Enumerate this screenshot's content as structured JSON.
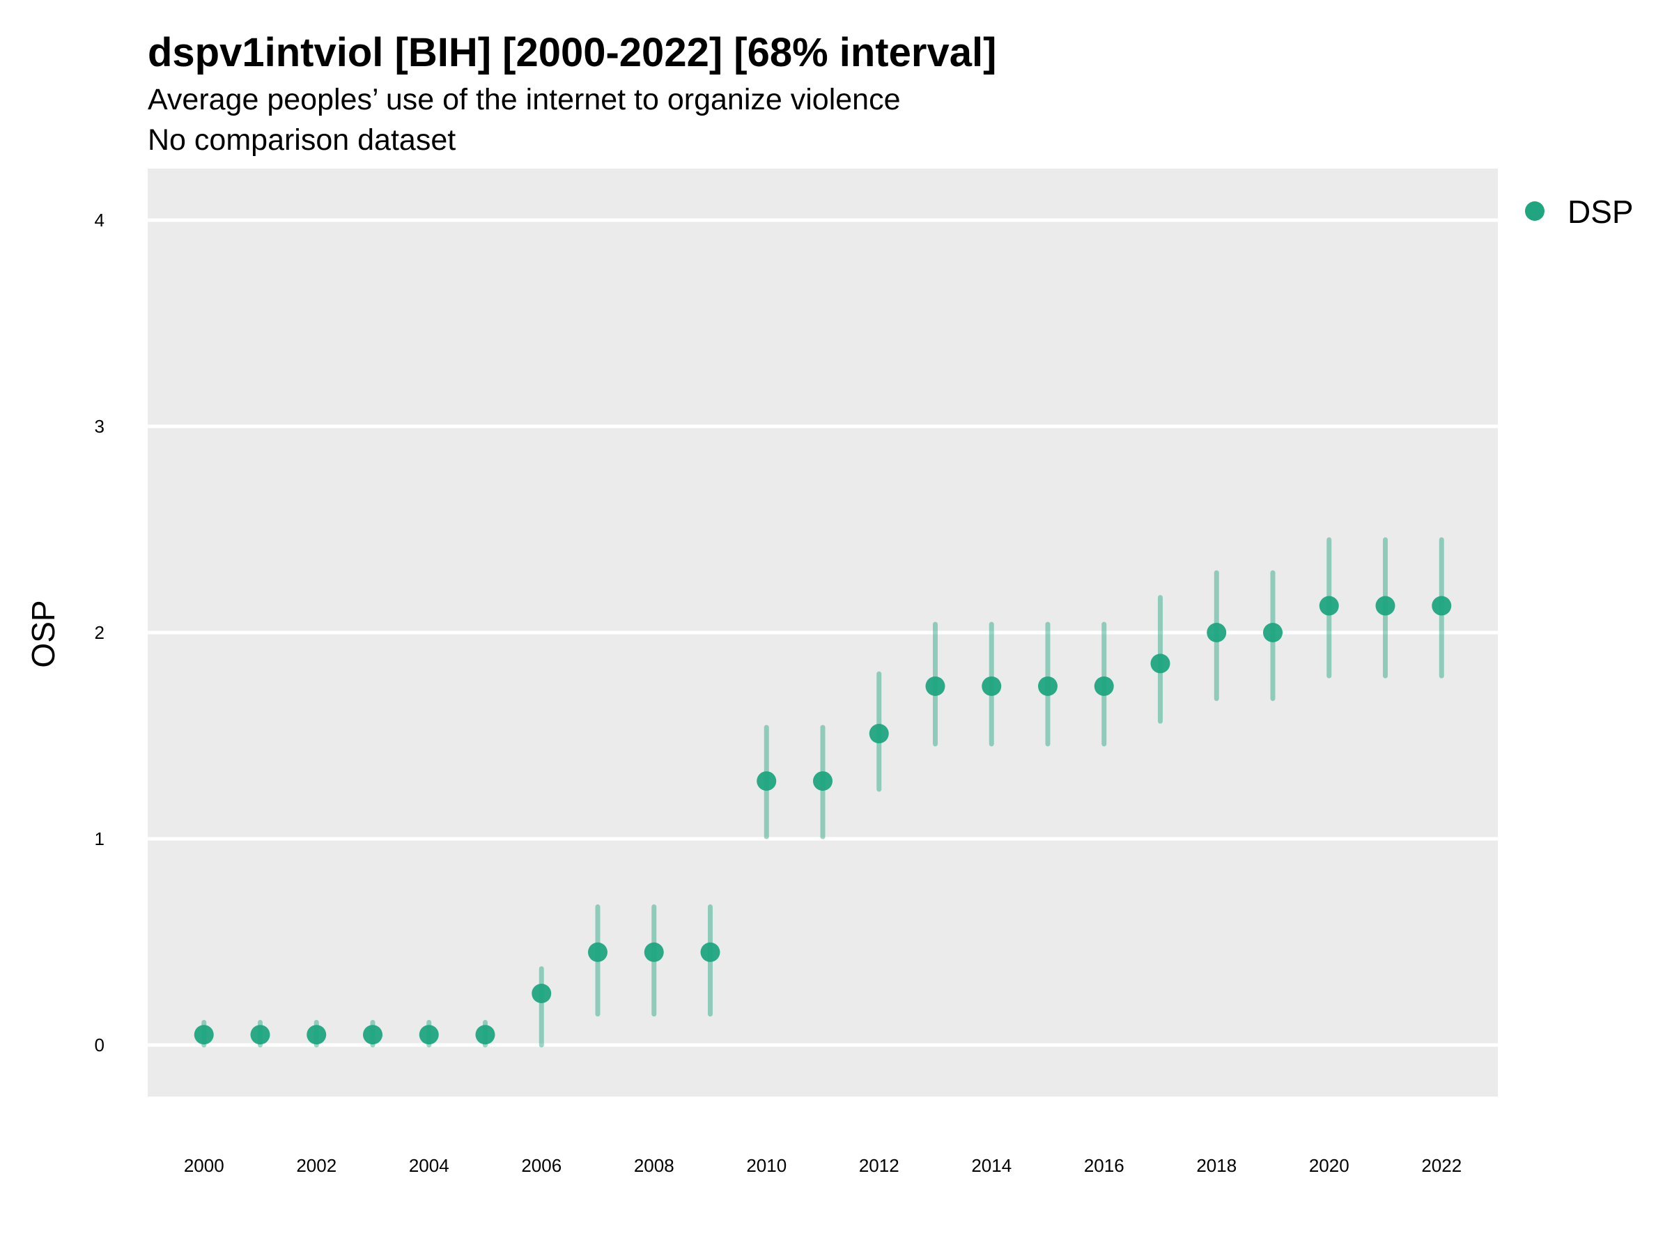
{
  "chart_data": {
    "type": "scatter",
    "title": "dspv1intviol [BIH] [2000-2022] [68% interval]",
    "subtitle_lines": [
      "Average peoples’ use of the internet to organize violence",
      "No comparison dataset"
    ],
    "xlabel": "",
    "ylabel": "OSP",
    "x_ticks": [
      "2000",
      "2002",
      "2004",
      "2006",
      "2008",
      "2010",
      "2012",
      "2014",
      "2016",
      "2018",
      "2020",
      "2022"
    ],
    "y_ticks": [
      "0",
      "1",
      "2",
      "3",
      "4"
    ],
    "xlim": [
      1999,
      2023
    ],
    "ylim": [
      -0.25,
      4.25
    ],
    "grid": true,
    "legend_position": "right",
    "series": [
      {
        "name": "DSP",
        "color": "#1fa57f",
        "x": [
          2000,
          2001,
          2002,
          2003,
          2004,
          2005,
          2006,
          2007,
          2008,
          2009,
          2010,
          2011,
          2012,
          2013,
          2014,
          2015,
          2016,
          2017,
          2018,
          2019,
          2020,
          2021,
          2022
        ],
        "y": [
          0.05,
          0.05,
          0.05,
          0.05,
          0.05,
          0.05,
          0.25,
          0.45,
          0.45,
          0.45,
          1.28,
          1.28,
          1.51,
          1.74,
          1.74,
          1.74,
          1.74,
          1.85,
          2.0,
          2.0,
          2.13,
          2.13,
          2.13
        ],
        "lower": [
          0.0,
          0.0,
          0.0,
          0.0,
          0.0,
          0.0,
          0.0,
          0.15,
          0.15,
          0.15,
          1.01,
          1.01,
          1.24,
          1.46,
          1.46,
          1.46,
          1.46,
          1.57,
          1.68,
          1.68,
          1.79,
          1.79,
          1.79
        ],
        "upper": [
          0.11,
          0.11,
          0.11,
          0.11,
          0.11,
          0.11,
          0.37,
          0.67,
          0.67,
          0.67,
          1.54,
          1.54,
          1.8,
          2.04,
          2.04,
          2.04,
          2.04,
          2.17,
          2.29,
          2.29,
          2.45,
          2.45,
          2.45
        ]
      }
    ]
  }
}
